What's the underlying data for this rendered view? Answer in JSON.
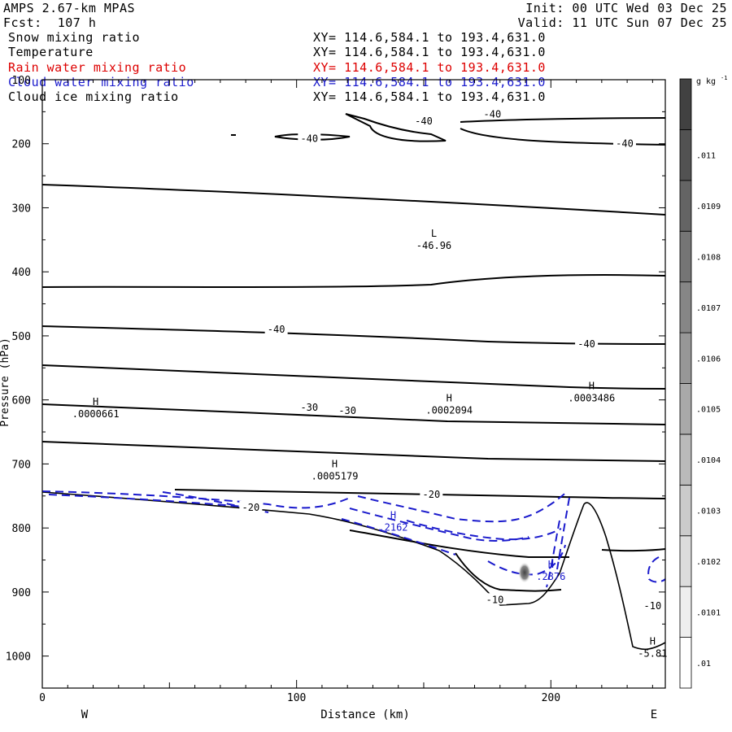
{
  "header": {
    "model": "AMPS 2.67-km MPAS",
    "forecast": "Fcst:  107 h",
    "init": "Init: 00 UTC Wed 03 Dec 25",
    "valid": "Valid: 11 UTC Sun 07 Dec 25"
  },
  "fields": [
    {
      "name": "Snow mixing ratio",
      "xy": "XY= 114.6,584.1 to 193.4,631.0",
      "color": "#000000"
    },
    {
      "name": "Temperature",
      "xy": "XY= 114.6,584.1 to 193.4,631.0",
      "color": "#000000"
    },
    {
      "name": "Rain water mixing ratio",
      "xy": "XY= 114.6,584.1 to 193.4,631.0",
      "color": "#dd0000"
    },
    {
      "name": "Cloud water mixing ratio",
      "xy": "XY= 114.6,584.1 to 193.4,631.0",
      "color": "#1a1acc"
    },
    {
      "name": "Cloud ice mixing ratio",
      "xy": "XY= 114.6,584.1 to 193.4,631.0",
      "color": "#000000"
    }
  ],
  "chart_data": {
    "type": "contour",
    "xlabel": "Distance (km)",
    "ylabel": "Pressure (hPa)",
    "xlim": [
      0,
      245
    ],
    "ylim": [
      1050,
      100
    ],
    "x_ticks": [
      0,
      100,
      200
    ],
    "y_ticks": [
      100,
      200,
      300,
      400,
      500,
      600,
      700,
      800,
      900,
      1000
    ],
    "x_end_labels": {
      "left": "W",
      "right": "E"
    },
    "colorbar": {
      "title": "g kg",
      "title_exp": "-1",
      "ticks": [
        ".01",
        ".0101",
        ".0102",
        ".0103",
        ".0104",
        ".0105",
        ".0106",
        ".0107",
        ".0108",
        ".0109",
        ".011"
      ]
    },
    "temperature_contour_labels": [
      {
        "text": "-40",
        "x": 105,
        "p": 192
      },
      {
        "text": "-40",
        "x": 150,
        "p": 165
      },
      {
        "text": "-40",
        "x": 177,
        "p": 154
      },
      {
        "text": "-40",
        "x": 229,
        "p": 200
      },
      {
        "text": "-40",
        "x": 92,
        "p": 490
      },
      {
        "text": "-40",
        "x": 214,
        "p": 513
      },
      {
        "text": "-30",
        "x": 105,
        "p": 612
      },
      {
        "text": "-30",
        "x": 120,
        "p": 617
      },
      {
        "text": "-20",
        "x": 153,
        "p": 748
      },
      {
        "text": "-20",
        "x": 82,
        "p": 768
      },
      {
        "text": "-10",
        "x": 178,
        "p": 912
      },
      {
        "text": "-10",
        "x": 240,
        "p": 922
      }
    ],
    "extrema_labels": [
      {
        "mark": "L",
        "value": "-46.96",
        "x": 154,
        "p": 345,
        "color": "#000000"
      },
      {
        "mark": "H",
        "value": ".0000661",
        "x": 21,
        "p": 608,
        "color": "#000000"
      },
      {
        "mark": "H",
        "value": ".0002094",
        "x": 160,
        "p": 602,
        "color": "#000000"
      },
      {
        "mark": "H",
        "value": ".0003486",
        "x": 216,
        "p": 583,
        "color": "#000000"
      },
      {
        "mark": "H",
        "value": ".0005179",
        "x": 115,
        "p": 705,
        "color": "#000000"
      },
      {
        "mark": "H",
        "value": ".2162",
        "x": 138,
        "p": 785,
        "color": "#1a1acc"
      },
      {
        "mark": "H",
        "value": ".2876",
        "x": 200,
        "p": 862,
        "color": "#1a1acc"
      },
      {
        "mark": "H",
        "value": "-5.81",
        "x": 240,
        "p": 982,
        "color": "#000000"
      }
    ]
  }
}
